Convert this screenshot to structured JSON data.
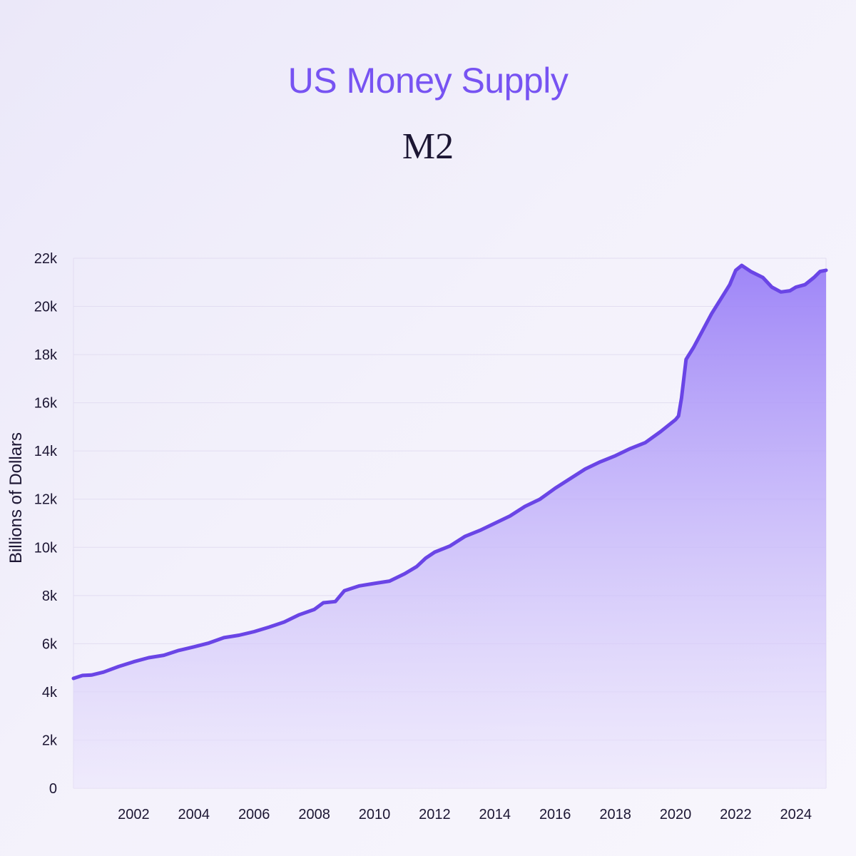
{
  "header": {
    "title": "US Money Supply",
    "subtitle": "M2"
  },
  "colors": {
    "title": "#7753f2",
    "line": "#6a45e6",
    "area_top": "#9a80f7",
    "area_bottom": "#ece6fc",
    "grid": "#e2ddf1",
    "text": "#1c1633"
  },
  "chart_data": {
    "type": "area",
    "title": "",
    "xlabel": "",
    "ylabel": "Billions of Dollars",
    "xlim": [
      2000.0,
      2025.0
    ],
    "ylim": [
      0,
      22000
    ],
    "grid": true,
    "x_ticks": [
      2002,
      2004,
      2006,
      2008,
      2010,
      2012,
      2014,
      2016,
      2018,
      2020,
      2022,
      2024
    ],
    "y_ticks": [
      0,
      2000,
      4000,
      6000,
      8000,
      10000,
      12000,
      14000,
      16000,
      18000,
      20000,
      22000
    ],
    "y_tick_labels": [
      "0",
      "2k",
      "4k",
      "6k",
      "8k",
      "10k",
      "12k",
      "14k",
      "16k",
      "18k",
      "20k",
      "22k"
    ],
    "series": [
      {
        "name": "",
        "points": [
          [
            2000.0,
            4560
          ],
          [
            2000.3,
            4680
          ],
          [
            2000.6,
            4700
          ],
          [
            2001.0,
            4820
          ],
          [
            2001.5,
            5050
          ],
          [
            2002.0,
            5250
          ],
          [
            2002.5,
            5420
          ],
          [
            2003.0,
            5520
          ],
          [
            2003.5,
            5720
          ],
          [
            2004.0,
            5870
          ],
          [
            2004.5,
            6030
          ],
          [
            2005.0,
            6250
          ],
          [
            2005.5,
            6350
          ],
          [
            2006.0,
            6500
          ],
          [
            2006.5,
            6690
          ],
          [
            2007.0,
            6900
          ],
          [
            2007.5,
            7200
          ],
          [
            2008.0,
            7420
          ],
          [
            2008.3,
            7700
          ],
          [
            2008.7,
            7750
          ],
          [
            2009.0,
            8200
          ],
          [
            2009.5,
            8400
          ],
          [
            2010.0,
            8500
          ],
          [
            2010.5,
            8600
          ],
          [
            2011.0,
            8900
          ],
          [
            2011.4,
            9200
          ],
          [
            2011.7,
            9550
          ],
          [
            2012.0,
            9800
          ],
          [
            2012.5,
            10050
          ],
          [
            2013.0,
            10450
          ],
          [
            2013.5,
            10700
          ],
          [
            2014.0,
            11000
          ],
          [
            2014.5,
            11300
          ],
          [
            2015.0,
            11700
          ],
          [
            2015.5,
            12000
          ],
          [
            2016.0,
            12450
          ],
          [
            2016.5,
            12850
          ],
          [
            2017.0,
            13250
          ],
          [
            2017.5,
            13550
          ],
          [
            2018.0,
            13800
          ],
          [
            2018.5,
            14100
          ],
          [
            2019.0,
            14350
          ],
          [
            2019.5,
            14800
          ],
          [
            2020.0,
            15300
          ],
          [
            2020.1,
            15450
          ],
          [
            2020.2,
            16200
          ],
          [
            2020.35,
            17800
          ],
          [
            2020.6,
            18300
          ],
          [
            2020.9,
            19000
          ],
          [
            2021.2,
            19700
          ],
          [
            2021.5,
            20300
          ],
          [
            2021.8,
            20900
          ],
          [
            2022.0,
            21500
          ],
          [
            2022.2,
            21700
          ],
          [
            2022.5,
            21450
          ],
          [
            2022.9,
            21200
          ],
          [
            2023.2,
            20800
          ],
          [
            2023.5,
            20600
          ],
          [
            2023.8,
            20650
          ],
          [
            2024.0,
            20800
          ],
          [
            2024.3,
            20900
          ],
          [
            2024.6,
            21200
          ],
          [
            2024.8,
            21450
          ],
          [
            2025.0,
            21500
          ]
        ]
      }
    ]
  }
}
